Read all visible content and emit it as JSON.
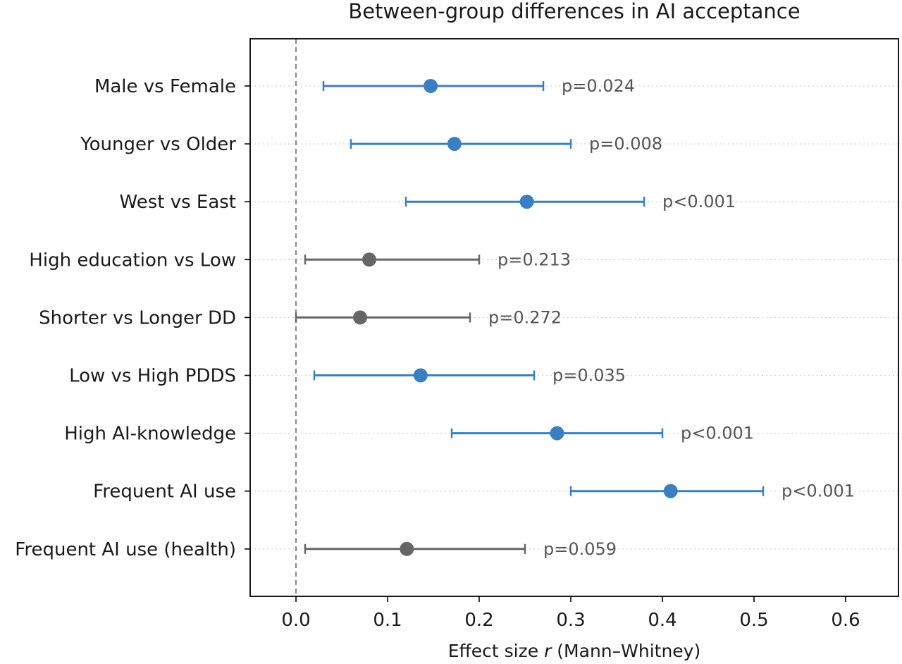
{
  "chart_data": {
    "type": "forest",
    "title": "Between-group differences in AI acceptance",
    "xlabel_prefix": "Effect size ",
    "xlabel_var": "r",
    "xlabel_suffix": " (Mann–Whitney)",
    "xlim": [
      -0.05,
      0.65
    ],
    "xticks": [
      "0.0",
      "0.1",
      "0.2",
      "0.3",
      "0.4",
      "0.5",
      "0.6"
    ],
    "reference_line": 0.0,
    "grid": "horizontal dotted",
    "colors": {
      "significant": "#3a7fc1",
      "nonsignificant": "#666666",
      "reference": "#888888"
    },
    "rows": [
      {
        "label": "Male vs Female",
        "r": 0.147,
        "ci": [
          0.03,
          0.27
        ],
        "p": "p=0.024",
        "significant": true
      },
      {
        "label": "Younger vs Older",
        "r": 0.173,
        "ci": [
          0.06,
          0.3
        ],
        "p": "p=0.008",
        "significant": true
      },
      {
        "label": "West vs East",
        "r": 0.252,
        "ci": [
          0.12,
          0.38
        ],
        "p": "p<0.001",
        "significant": true
      },
      {
        "label": "High education vs Low",
        "r": 0.08,
        "ci": [
          0.01,
          0.2
        ],
        "p": "p=0.213",
        "significant": false
      },
      {
        "label": "Shorter vs Longer DD",
        "r": 0.07,
        "ci": [
          0.0,
          0.19
        ],
        "p": "p=0.272",
        "significant": false
      },
      {
        "label": "Low vs High PDDS",
        "r": 0.136,
        "ci": [
          0.02,
          0.26
        ],
        "p": "p=0.035",
        "significant": true
      },
      {
        "label": "High AI-knowledge",
        "r": 0.285,
        "ci": [
          0.17,
          0.4
        ],
        "p": "p<0.001",
        "significant": true
      },
      {
        "label": "Frequent AI use",
        "r": 0.409,
        "ci": [
          0.3,
          0.51
        ],
        "p": "p<0.001",
        "significant": true
      },
      {
        "label": "Frequent AI use (health)",
        "r": 0.121,
        "ci": [
          0.01,
          0.25
        ],
        "p": "p=0.059",
        "significant": false
      }
    ]
  }
}
